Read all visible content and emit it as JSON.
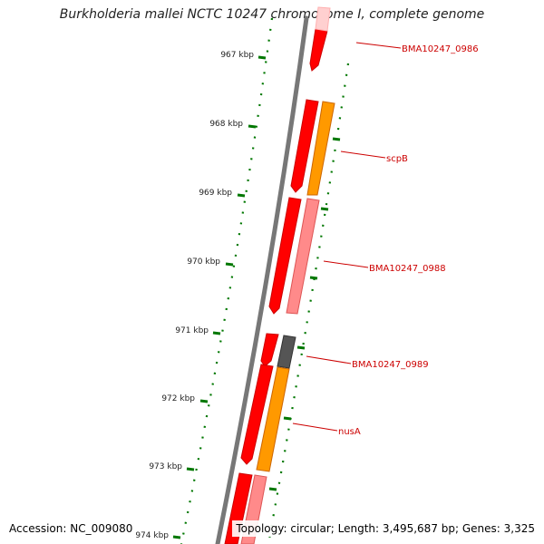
{
  "title": "Burkholderia mallei NCTC 10247 chromosome I, complete genome",
  "accession": "Accession: NC_009080",
  "summary": "Topology: circular; Length: 3,495,687 bp; Genes: 3,325",
  "ticks": [
    "967 kbp",
    "968 kbp",
    "969 kbp",
    "970 kbp",
    "971 kbp",
    "972 kbp",
    "973 kbp",
    "974 kbp"
  ],
  "gene_labels": [
    "BMA10247_0986",
    "scpB",
    "BMA10247_0988",
    "BMA10247_0989",
    "nusA"
  ],
  "colors": {
    "gene": "#ff0000",
    "cds": "#ff8a8a",
    "rna": "#ff9900",
    "hypothetical": "#555555",
    "backbone": "#777777",
    "tick": "#007700",
    "label": "#cc0000"
  }
}
